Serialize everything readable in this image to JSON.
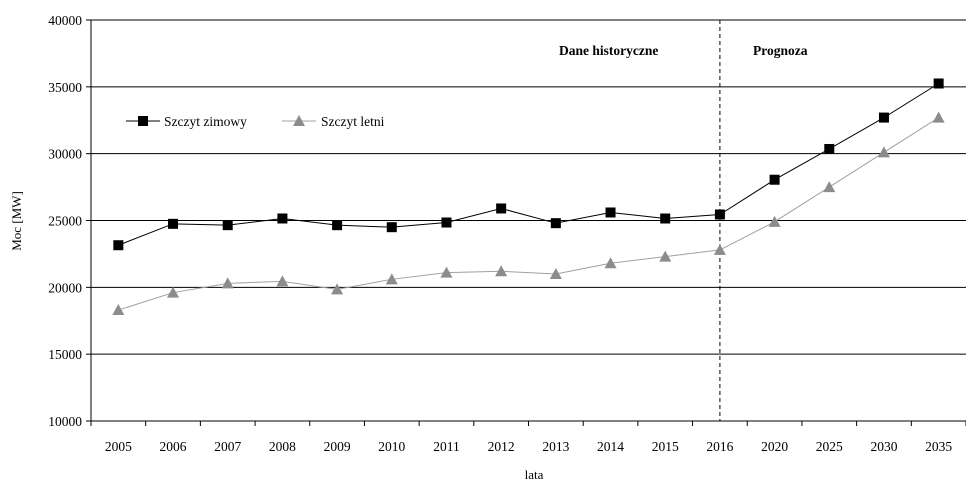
{
  "chart_data": {
    "type": "line",
    "title": "",
    "xlabel": "lata",
    "ylabel": "Moc [MW]",
    "ylim": [
      10000,
      40000
    ],
    "yticks": [
      10000,
      15000,
      20000,
      25000,
      30000,
      35000,
      40000
    ],
    "categories": [
      "2005",
      "2006",
      "2007",
      "2008",
      "2009",
      "2010",
      "2011",
      "2012",
      "2013",
      "2014",
      "2015",
      "2016",
      "2020",
      "2025",
      "2030",
      "2035"
    ],
    "series": [
      {
        "name": "Szczyt zimowy",
        "marker": "square",
        "color": "#000000",
        "values": [
          23150,
          24750,
          24650,
          25150,
          24650,
          24500,
          24850,
          25900,
          24800,
          25600,
          25150,
          25450,
          28050,
          30350,
          32700,
          35250
        ]
      },
      {
        "name": "Szczyt letni",
        "marker": "triangle",
        "color": "#8c8c8c",
        "values": [
          18300,
          19600,
          20300,
          20450,
          19850,
          20600,
          21100,
          21200,
          21000,
          21800,
          22300,
          22800,
          24900,
          27500,
          30100,
          32700
        ]
      }
    ],
    "grid": true,
    "legend_position": "top-left",
    "annotations": {
      "historical_label": "Dane historyczne",
      "forecast_label": "Prognoza",
      "divider_category": "2016"
    }
  }
}
